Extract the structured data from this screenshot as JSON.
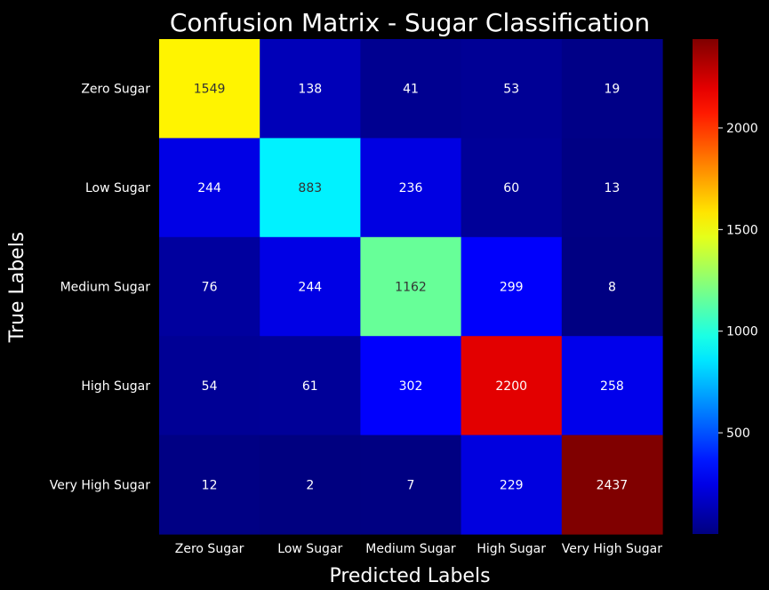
{
  "chart_data": {
    "type": "heatmap",
    "title": "Confusion Matrix - Sugar Classification",
    "xlabel": "Predicted Labels",
    "ylabel": "True Labels",
    "x_categories": [
      "Zero Sugar",
      "Low Sugar",
      "Medium Sugar",
      "High Sugar",
      "Very High Sugar"
    ],
    "y_categories": [
      "Zero Sugar",
      "Low Sugar",
      "Medium Sugar",
      "High Sugar",
      "Very High Sugar"
    ],
    "values": [
      [
        1549,
        138,
        41,
        53,
        19
      ],
      [
        244,
        883,
        236,
        60,
        13
      ],
      [
        76,
        244,
        1162,
        299,
        8
      ],
      [
        54,
        61,
        302,
        2200,
        258
      ],
      [
        12,
        2,
        7,
        229,
        2437
      ]
    ],
    "colormap": "jet",
    "vmin": 2,
    "vmax": 2437,
    "colorbar_ticks": [
      500,
      1000,
      1500,
      2000
    ],
    "background": "#000000",
    "text_color": "#ffffff"
  }
}
